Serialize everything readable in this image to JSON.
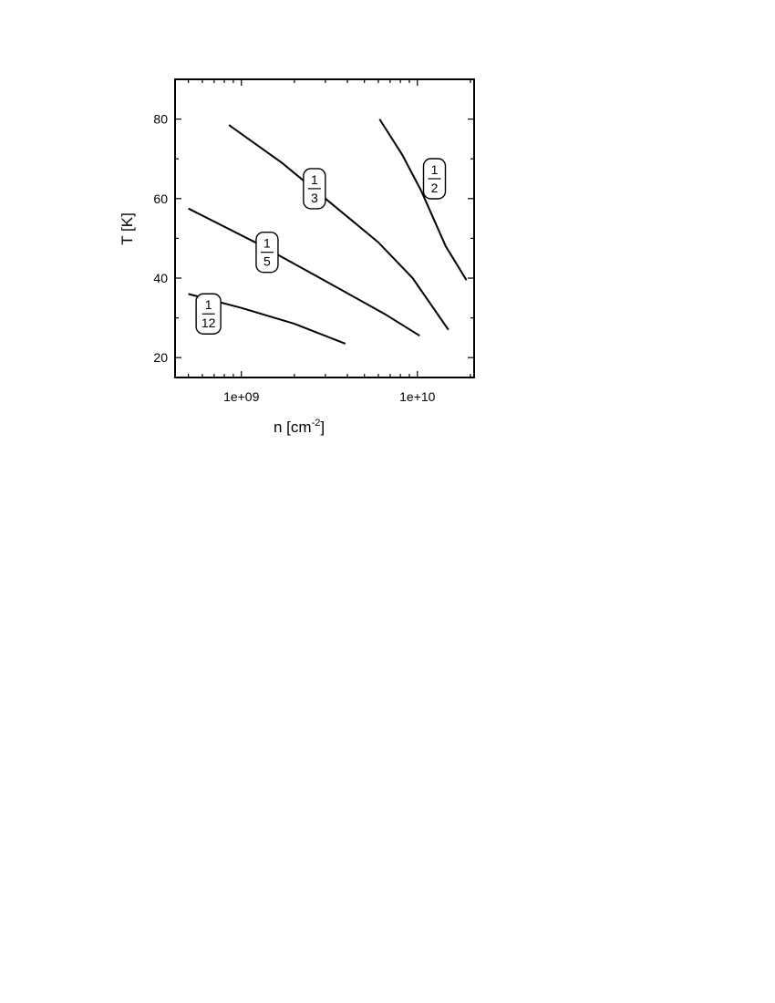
{
  "chart_data": {
    "type": "line",
    "title": "",
    "xlabel": "n [cm",
    "xlabel_sup": "-2",
    "xlabel_close": "]",
    "ylabel": "T [K]",
    "xscale": "log",
    "xlim": [
      420000000.0,
      21000000000.0
    ],
    "ylim": [
      15,
      90
    ],
    "x_ticks": [
      {
        "value": 1000000000.0,
        "label": "1e+09"
      },
      {
        "value": 10000000000.0,
        "label": "1e+10"
      }
    ],
    "y_ticks": [
      {
        "value": 20,
        "label": "20"
      },
      {
        "value": 40,
        "label": "40"
      },
      {
        "value": 60,
        "label": "60"
      },
      {
        "value": 80,
        "label": "80"
      }
    ],
    "grid": false,
    "series": [
      {
        "label_num": "1",
        "label_den": "2",
        "label_at": [
          12500000000.0,
          65
        ],
        "points": [
          [
            6100000000.0,
            80
          ],
          [
            8200000000.0,
            71
          ],
          [
            10500000000.0,
            62
          ],
          [
            14500000000.0,
            48
          ],
          [
            19000000000.0,
            39.5
          ]
        ]
      },
      {
        "label_num": "1",
        "label_den": "3",
        "label_at": [
          2600000000.0,
          62.5
        ],
        "points": [
          [
            850000000.0,
            78.5
          ],
          [
            1700000000.0,
            69
          ],
          [
            3300000000.0,
            58.5
          ],
          [
            6000000000.0,
            49
          ],
          [
            9400000000.0,
            40
          ],
          [
            15000000000.0,
            27
          ]
        ]
      },
      {
        "label_num": "1",
        "label_den": "5",
        "label_at": [
          1400000000.0,
          46.5
        ],
        "points": [
          [
            500000000.0,
            57.5
          ],
          [
            1200000000.0,
            49
          ],
          [
            2800000000.0,
            40
          ],
          [
            6500000000.0,
            31
          ],
          [
            10300000000.0,
            25.5
          ]
        ]
      },
      {
        "label_num": "1",
        "label_den": "12",
        "label_at": [
          650000000.0,
          31
        ],
        "points": [
          [
            500000000.0,
            36
          ],
          [
            1000000000.0,
            32.5
          ],
          [
            2000000000.0,
            28.5
          ],
          [
            3900000000.0,
            23.5
          ]
        ]
      }
    ]
  }
}
